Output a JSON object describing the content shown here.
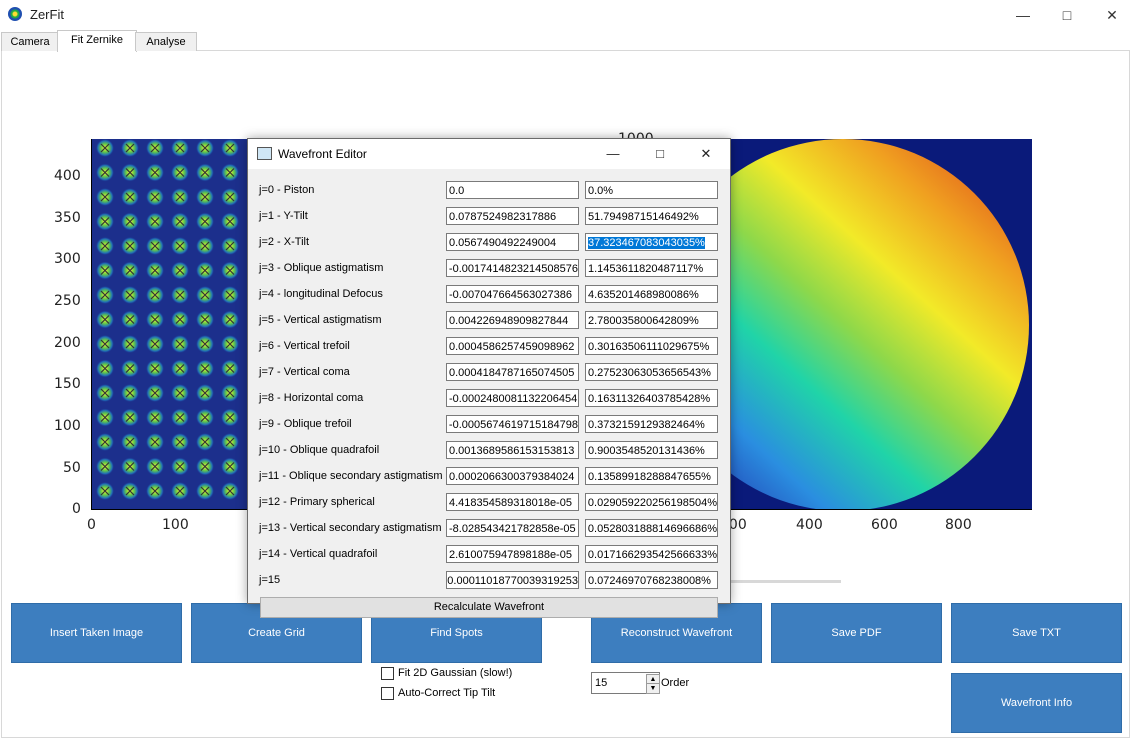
{
  "app": {
    "title": "ZerFit",
    "icon": "zerfit-app-icon"
  },
  "window": {
    "minimize_icon": "minimize-icon",
    "maximize_icon": "maximize-icon",
    "close_icon": "close-icon"
  },
  "tabs": [
    {
      "label": "Camera",
      "active": false
    },
    {
      "label": "Fit Zernike",
      "active": true
    },
    {
      "label": "Analyse",
      "active": false
    }
  ],
  "left_plot": {
    "y_ticks": [
      "400",
      "350",
      "300",
      "250",
      "200",
      "150",
      "100",
      "50",
      "0"
    ],
    "x_ticks": [
      "0",
      "100"
    ]
  },
  "right_plot": {
    "x_ticks": [
      "200",
      "400",
      "600",
      "800"
    ],
    "top_tick": "1000"
  },
  "buttons": {
    "insert_image": "Insert Taken Image",
    "create_grid": "Create Grid",
    "find_spots": "Find Spots",
    "reconstruct": "Reconstruct Wavefront",
    "save_pdf": "Save PDF",
    "save_txt": "Save TXT",
    "wavefront_info": "Wavefront Info"
  },
  "options": {
    "fit_gaussian": {
      "label": "Fit 2D Gaussian (slow!)",
      "checked": false
    },
    "auto_correct": {
      "label": "Auto-Correct Tip Tilt",
      "checked": false
    }
  },
  "order": {
    "value": "15",
    "label": "Order"
  },
  "dialog": {
    "title": "Wavefront Editor",
    "icon": "window-icon",
    "recalc_label": "Recalculate Wavefront",
    "rows": [
      {
        "label": "j=0 - Piston",
        "value": "0.0",
        "percent": "0.0%"
      },
      {
        "label": "j=1 - Y-Tilt",
        "value": "0.0787524982317886",
        "percent": "51.79498715146492%"
      },
      {
        "label": "j=2 - X-Tilt",
        "value": "0.0567490492249004",
        "percent": "37.323467083043035%"
      },
      {
        "label": "j=3 - Oblique astigmatism",
        "value": "-0.0017414823214508576",
        "percent": "1.1453611820487117%"
      },
      {
        "label": "j=4 - longitudinal Defocus",
        "value": "-0.007047664563027386",
        "percent": "4.635201468980086%"
      },
      {
        "label": "j=5 - Vertical astigmatism",
        "value": "0.004226948909827844",
        "percent": "2.780035800642809%"
      },
      {
        "label": "j=6 - Vertical trefoil",
        "value": "0.0004586257459098962",
        "percent": "0.30163506111029675%"
      },
      {
        "label": "j=7 - Vertical coma",
        "value": "0.0004184787165074505",
        "percent": "0.27523063053656543%"
      },
      {
        "label": "j=8 - Horizontal coma",
        "value": "-0.0002480081132206454",
        "percent": "0.16311326403785428%"
      },
      {
        "label": "j=9 - Oblique trefoil",
        "value": "-0.0005674619715184798",
        "percent": "0.3732159129382464%"
      },
      {
        "label": "j=10 - Oblique quadrafoil",
        "value": "0.0013689586153153813",
        "percent": "0.9003548520131436%"
      },
      {
        "label": "j=11 - Oblique secondary astigmatism",
        "value": "0.0002066300379384024",
        "percent": "0.13589918288847655%"
      },
      {
        "label": "j=12 - Primary spherical",
        "value": "4.418354589318018e-05",
        "percent": "0.029059220256198504%"
      },
      {
        "label": "j=13 - Vertical secondary astigmatism",
        "value": "-8.028543421782858e-05",
        "percent": "0.052803188814696686%"
      },
      {
        "label": "j=14 - Vertical quadrafoil",
        "value": "2.610075947898188e-05",
        "percent": "0.017166293542566633%"
      },
      {
        "label": "j=15",
        "value": "0.00011018770039319253",
        "percent": "0.07246970768238008%"
      }
    ]
  }
}
